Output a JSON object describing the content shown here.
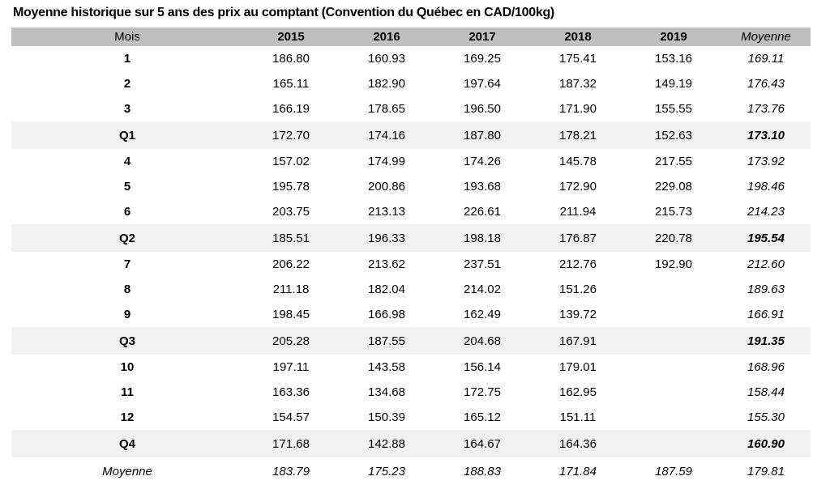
{
  "title": "Moyenne historique sur 5 ans des prix au comptant (Convention du Québec en CAD/100kg)",
  "colors": {
    "header_bg": "#bfbfbf",
    "quarter_row_bg": "#f1f1f1",
    "text": "#000000"
  },
  "chart_data": {
    "type": "table",
    "title": "Moyenne historique sur 5 ans des prix au comptant (Convention du Québec en CAD/100kg)",
    "columns": [
      "Mois",
      "2015",
      "2016",
      "2017",
      "2018",
      "2019",
      "Moyenne"
    ],
    "rows": [
      {
        "label": "1",
        "type": "month",
        "values": [
          "186.80",
          "160.93",
          "169.25",
          "175.41",
          "153.16",
          "169.11"
        ]
      },
      {
        "label": "2",
        "type": "month",
        "values": [
          "165.11",
          "182.90",
          "197.64",
          "187.32",
          "149.19",
          "176.43"
        ]
      },
      {
        "label": "3",
        "type": "month",
        "values": [
          "166.19",
          "178.65",
          "196.50",
          "171.90",
          "155.55",
          "173.76"
        ]
      },
      {
        "label": "Q1",
        "type": "quarter",
        "values": [
          "172.70",
          "174.16",
          "187.80",
          "178.21",
          "152.63",
          "173.10"
        ]
      },
      {
        "label": "4",
        "type": "month",
        "values": [
          "157.02",
          "174.99",
          "174.26",
          "145.78",
          "217.55",
          "173.92"
        ]
      },
      {
        "label": "5",
        "type": "month",
        "values": [
          "195.78",
          "200.86",
          "193.68",
          "172.90",
          "229.08",
          "198.46"
        ]
      },
      {
        "label": "6",
        "type": "month",
        "values": [
          "203.75",
          "213.13",
          "226.61",
          "211.94",
          "215.73",
          "214.23"
        ]
      },
      {
        "label": "Q2",
        "type": "quarter",
        "values": [
          "185.51",
          "196.33",
          "198.18",
          "176.87",
          "220.78",
          "195.54"
        ]
      },
      {
        "label": "7",
        "type": "month",
        "values": [
          "206.22",
          "213.62",
          "237.51",
          "212.76",
          "192.90",
          "212.60"
        ]
      },
      {
        "label": "8",
        "type": "month",
        "values": [
          "211.18",
          "182.04",
          "214.02",
          "151.26",
          "",
          "189.63"
        ]
      },
      {
        "label": "9",
        "type": "month",
        "values": [
          "198.45",
          "166.98",
          "162.49",
          "139.72",
          "",
          "166.91"
        ]
      },
      {
        "label": "Q3",
        "type": "quarter",
        "values": [
          "205.28",
          "187.55",
          "204.68",
          "167.91",
          "",
          "191.35"
        ]
      },
      {
        "label": "10",
        "type": "month",
        "values": [
          "197.11",
          "143.58",
          "156.14",
          "179.01",
          "",
          "168.96"
        ]
      },
      {
        "label": "11",
        "type": "month",
        "values": [
          "163.36",
          "134.68",
          "172.75",
          "162.95",
          "",
          "158.44"
        ]
      },
      {
        "label": "12",
        "type": "month",
        "values": [
          "154.57",
          "150.39",
          "165.12",
          "151.11",
          "",
          "155.30"
        ]
      },
      {
        "label": "Q4",
        "type": "quarter",
        "values": [
          "171.68",
          "142.88",
          "164.67",
          "164.36",
          "",
          "160.90"
        ]
      },
      {
        "label": "Moyenne",
        "type": "average",
        "values": [
          "183.79",
          "175.23",
          "188.83",
          "171.84",
          "187.59",
          "179.81"
        ]
      }
    ]
  }
}
